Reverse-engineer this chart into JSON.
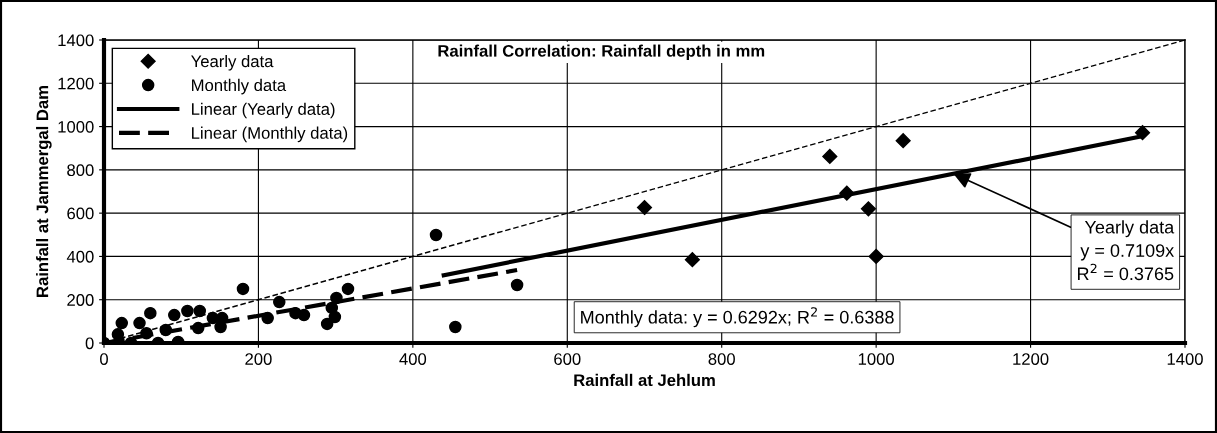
{
  "chart_data": {
    "type": "scatter",
    "title": "Rainfall Correlation: Rainfall depth in mm",
    "xlabel": "Rainfall at Jehlum",
    "ylabel": "Rainfall at Jammergal Dam",
    "series": [
      {
        "name": "Yearly data",
        "marker": "diamond",
        "color": "#000000",
        "x": [
          700,
          762,
          940,
          962,
          990,
          1000,
          1035,
          1345
        ],
        "values": [
          626,
          385,
          862,
          692,
          620,
          400,
          935,
          972
        ]
      },
      {
        "name": "Monthly data",
        "marker": "circle",
        "color": "#000000",
        "x": [
          0,
          18,
          35,
          55,
          70,
          80,
          96,
          23,
          46,
          60,
          91,
          108,
          124,
          122,
          141,
          151,
          153,
          180,
          212,
          227,
          248,
          259,
          289,
          299,
          301,
          316,
          295,
          430,
          455,
          535
        ],
        "values": [
          0,
          40,
          0,
          45,
          0,
          60,
          5,
          92,
          92,
          138,
          129,
          148,
          148,
          69,
          115,
          74,
          115,
          250,
          115,
          189,
          138,
          129,
          88,
          120,
          208,
          250,
          162,
          499,
          74,
          268
        ]
      },
      {
        "name": "Linear (Yearly data)",
        "type": "line",
        "line_style": "solid",
        "color": "#000000",
        "x": [
          440,
          1345
        ],
        "values": [
          313,
          956
        ]
      },
      {
        "name": "Linear (Monthly data)",
        "type": "line",
        "line_style": "dashed",
        "color": "#000000",
        "x": [
          0,
          535
        ],
        "values": [
          0,
          337
        ]
      },
      {
        "type": "line",
        "line_style": "dashed",
        "color": "#000000",
        "x": [
          0,
          1400
        ],
        "values": [
          0,
          1400
        ]
      }
    ],
    "annotations": [
      {
        "text": "Yearly data\ny = 0.7109x\nR$^{2}$ = 0.3765",
        "x": 1100,
        "y": 782
      },
      "Monthly data: y = 0.6292x; R$^{2}$ = 0.6388"
    ],
    "xlim": [
      0,
      1400
    ],
    "ylim": [
      0,
      1400
    ],
    "xticks": [
      0,
      200,
      400,
      600,
      800,
      1000,
      1200,
      1400
    ],
    "yticks": [
      0,
      200,
      400,
      600,
      800,
      1000,
      1200,
      1400
    ],
    "grid": true,
    "legend": "top left"
  }
}
